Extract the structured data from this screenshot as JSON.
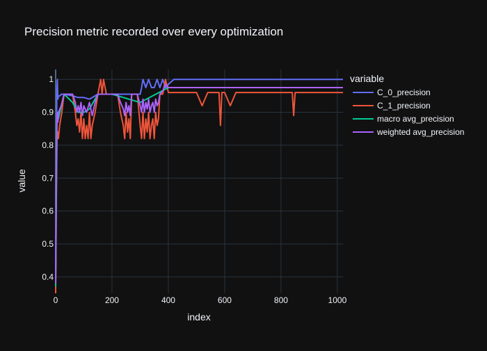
{
  "chart_data": {
    "type": "line",
    "title": "Precision metric recorded over every optimization",
    "xlabel": "index",
    "ylabel": "value",
    "xlim": [
      0,
      1020
    ],
    "ylim": [
      0.35,
      1.03
    ],
    "xticks": [
      0,
      200,
      400,
      600,
      800,
      1000
    ],
    "xtick_labels": [
      "0",
      "200",
      "400",
      "600",
      "800",
      "1000"
    ],
    "yticks": [
      0.4,
      0.5,
      0.6,
      0.7,
      0.8,
      0.9,
      1
    ],
    "ytick_labels": [
      "0.4",
      "0.5",
      "0.6",
      "0.7",
      "0.8",
      "0.9",
      "1"
    ],
    "grid": true,
    "legend_title": "variable",
    "legend_position": "right",
    "series": [
      {
        "name": "C_0_precision",
        "color": "#636efa",
        "x": [
          0,
          2,
          4,
          6,
          8,
          10,
          15,
          20,
          30,
          60,
          80,
          100,
          120,
          140,
          150,
          160,
          180,
          200,
          220,
          230,
          240,
          260,
          280,
          290,
          300,
          305,
          310,
          320,
          330,
          340,
          350,
          360,
          370,
          380,
          390,
          400,
          420,
          440,
          500,
          600,
          680,
          700,
          900,
          920,
          930,
          940,
          950,
          960,
          1020
        ],
        "y": [
          0.4,
          0.7,
          0.94,
          1.0,
          0.94,
          0.95,
          0.95,
          0.955,
          0.955,
          0.95,
          0.945,
          0.945,
          0.94,
          0.95,
          0.955,
          0.955,
          0.955,
          0.955,
          0.955,
          0.955,
          0.955,
          0.955,
          0.955,
          0.955,
          0.955,
          0.975,
          1.0,
          0.975,
          1.0,
          0.975,
          0.975,
          1.0,
          0.975,
          1.0,
          0.975,
          0.985,
          1.0,
          1.0,
          1.0,
          1.0,
          1.0,
          1.0,
          1.0,
          1.0,
          1.0,
          1.0,
          1.0,
          1.0,
          1.0
        ]
      },
      {
        "name": "C_1_precision",
        "color": "#ef553b",
        "x": [
          0,
          3,
          5,
          8,
          10,
          14,
          18,
          22,
          26,
          30,
          40,
          60,
          70,
          75,
          80,
          85,
          90,
          95,
          100,
          105,
          110,
          115,
          120,
          125,
          130,
          140,
          150,
          160,
          165,
          170,
          180,
          200,
          220,
          230,
          240,
          245,
          250,
          255,
          260,
          265,
          270,
          280,
          290,
          300,
          305,
          310,
          315,
          320,
          325,
          330,
          335,
          340,
          345,
          350,
          355,
          360,
          365,
          370,
          380,
          390,
          400,
          420,
          440,
          500,
          520,
          540,
          580,
          585,
          590,
          600,
          620,
          640,
          680,
          700,
          840,
          845,
          850,
          900,
          960,
          1020
        ],
        "y": [
          0.35,
          0.69,
          0.83,
          0.84,
          0.82,
          0.86,
          0.88,
          0.9,
          0.93,
          0.955,
          0.955,
          0.955,
          0.9,
          0.86,
          0.88,
          0.84,
          0.9,
          0.82,
          0.88,
          0.82,
          0.86,
          0.82,
          0.9,
          0.82,
          0.86,
          0.9,
          0.955,
          1.0,
          0.955,
          1.0,
          0.955,
          0.955,
          0.955,
          0.9,
          0.86,
          0.82,
          0.9,
          0.84,
          0.88,
          0.82,
          0.955,
          0.955,
          0.955,
          0.86,
          0.82,
          0.9,
          0.82,
          0.88,
          0.84,
          0.9,
          0.82,
          0.86,
          0.88,
          0.82,
          0.9,
          0.86,
          0.88,
          0.955,
          0.955,
          1.0,
          0.96,
          0.96,
          0.96,
          0.96,
          0.92,
          0.96,
          0.96,
          0.86,
          0.96,
          0.96,
          0.92,
          0.96,
          0.96,
          0.96,
          0.96,
          0.89,
          0.96,
          0.96,
          0.96,
          0.96
        ]
      },
      {
        "name": "macro avg_precision",
        "color": "#00cc96",
        "x": [
          0,
          3,
          5,
          8,
          10,
          20,
          30,
          60,
          80,
          100,
          120,
          150,
          200,
          300,
          400,
          500,
          1020
        ],
        "y": [
          0.37,
          0.7,
          0.88,
          0.9,
          0.88,
          0.92,
          0.955,
          0.93,
          0.9,
          0.9,
          0.91,
          0.955,
          0.955,
          0.93,
          0.975,
          0.975,
          0.975
        ]
      },
      {
        "name": "weighted avg_precision",
        "color": "#ab63fa",
        "x": [
          0,
          2,
          4,
          6,
          8,
          10,
          15,
          20,
          30,
          40,
          60,
          70,
          75,
          80,
          85,
          90,
          95,
          100,
          110,
          120,
          130,
          140,
          150,
          160,
          180,
          200,
          220,
          230,
          240,
          245,
          250,
          255,
          260,
          265,
          270,
          280,
          290,
          300,
          305,
          310,
          315,
          320,
          325,
          330,
          335,
          340,
          345,
          350,
          355,
          360,
          365,
          370,
          380,
          390,
          400,
          420,
          440,
          500,
          520,
          540,
          580,
          585,
          590,
          600,
          640,
          680,
          700,
          840,
          845,
          850,
          900,
          920,
          940,
          960,
          1020
        ],
        "y": [
          0.38,
          0.7,
          0.86,
          0.9,
          0.87,
          0.9,
          0.91,
          0.92,
          0.955,
          0.955,
          0.955,
          0.93,
          0.9,
          0.92,
          0.9,
          0.93,
          0.89,
          0.92,
          0.9,
          0.93,
          0.89,
          0.93,
          0.955,
          0.955,
          0.955,
          0.955,
          0.955,
          0.93,
          0.91,
          0.89,
          0.93,
          0.9,
          0.92,
          0.89,
          0.955,
          0.955,
          0.955,
          0.92,
          0.9,
          0.94,
          0.9,
          0.93,
          0.91,
          0.94,
          0.9,
          0.92,
          0.93,
          0.9,
          0.94,
          0.92,
          0.93,
          0.955,
          0.965,
          0.985,
          0.975,
          0.975,
          0.975,
          0.975,
          0.975,
          0.975,
          0.975,
          0.975,
          0.975,
          0.975,
          0.975,
          0.975,
          0.975,
          0.975,
          0.975,
          0.975,
          0.975,
          0.975,
          0.975,
          0.975,
          0.975
        ]
      }
    ]
  }
}
